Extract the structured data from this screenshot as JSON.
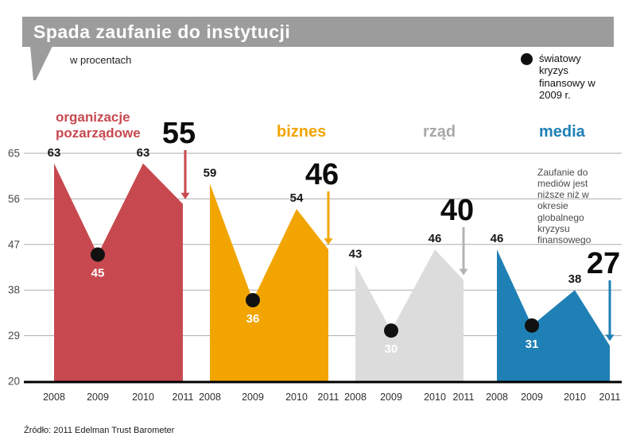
{
  "title": "Spada zaufanie do instytucji",
  "subtitle": "w procentach",
  "legend": {
    "label": "światowy kryzys finansowy w 2009 r."
  },
  "media_note": "Zaufanie do mediów jest niższe niż w okresie globalnego kryzysu finansowego",
  "source": "Źródło: 2011 Edelman Trust Barometer",
  "colors": {
    "banner": "#9c9c9c",
    "grid": "#adadad",
    "axis": "#000000",
    "crisis_dot": "#111111"
  },
  "chart_data": {
    "type": "area",
    "title": "Spada zaufanie do instytucji",
    "ylabel": "w procentach",
    "categories": [
      "2008",
      "2009",
      "2010",
      "2011"
    ],
    "ylim": [
      20,
      65
    ],
    "yticks": [
      65,
      56,
      47,
      38,
      29,
      20
    ],
    "grid": true,
    "crisis_year": "2009",
    "series": [
      {
        "name": "organizacje pozarządowe",
        "color": "#c7494f",
        "values": [
          63,
          45,
          63,
          55
        ]
      },
      {
        "name": "biznes",
        "color": "#f2a500",
        "values": [
          59,
          36,
          54,
          46
        ]
      },
      {
        "name": "rząd",
        "color": "#dcdcdc",
        "label_color": "#a9a9a9",
        "arrow_color": "#b3b3b3",
        "values": [
          43,
          30,
          46,
          40
        ]
      },
      {
        "name": "media",
        "color": "#1f80b5",
        "values": [
          46,
          31,
          38,
          27
        ]
      }
    ]
  }
}
